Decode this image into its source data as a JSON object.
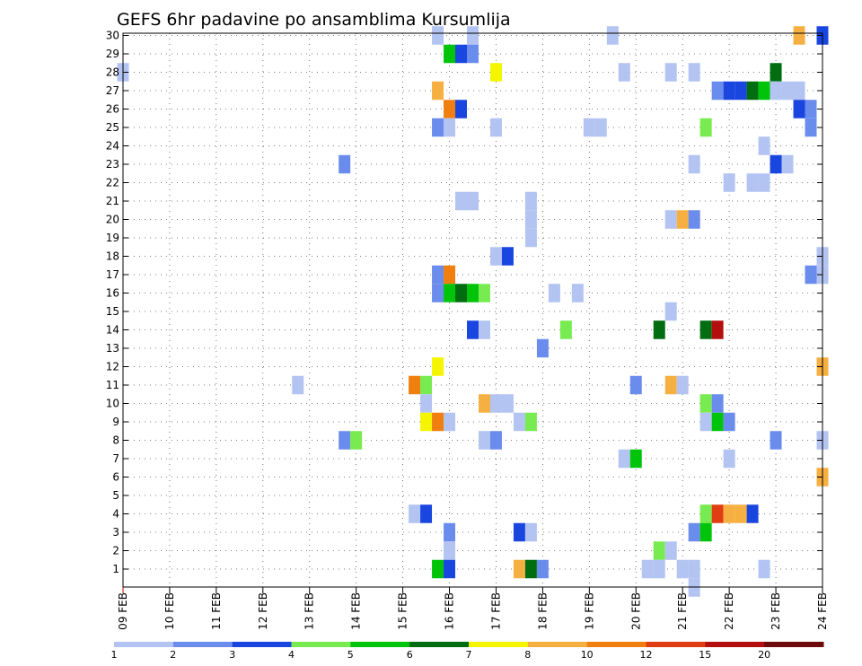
{
  "chart_data": {
    "type": "heatmap",
    "title": "GEFS 6hr padavine po ansamblima Kursumlija",
    "x_ticks": [
      "09 FEB",
      "10 FEB",
      "11 FEB",
      "12 FEB",
      "13 FEB",
      "14 FEB",
      "15 FEB",
      "16 FEB",
      "17 FEB",
      "18 FEB",
      "19 FEB",
      "20 FEB",
      "21 FEB",
      "22 FEB",
      "23 FEB",
      "24 FEB"
    ],
    "y_ticks": [
      "1",
      "2",
      "3",
      "4",
      "5",
      "6",
      "7",
      "8",
      "9",
      "10",
      "11",
      "12",
      "13",
      "14",
      "15",
      "16",
      "17",
      "18",
      "19",
      "20",
      "21",
      "22",
      "23",
      "24",
      "25",
      "26",
      "27",
      "28",
      "29",
      "30"
    ],
    "colorbar": {
      "labels": [
        "1",
        "2",
        "3",
        "4",
        "5",
        "6",
        "7",
        "8",
        "10",
        "12",
        "15",
        "20"
      ],
      "colors": [
        "#b3c4f2",
        "#6a8cec",
        "#1a46e0",
        "#78eb51",
        "#00c40a",
        "#006d10",
        "#f5f500",
        "#f5b041",
        "#f07f10",
        "#e03d12",
        "#b40f0f",
        "#6e0a0a"
      ]
    },
    "cells": [
      {
        "m": 30,
        "t": "15 FEB 18Z",
        "c": 1
      },
      {
        "m": 30,
        "t": "16 FEB 12Z",
        "c": 1
      },
      {
        "m": 30,
        "t": "19 FEB 12Z",
        "c": 1
      },
      {
        "m": 30,
        "t": "23 FEB 12Z",
        "c": 8
      },
      {
        "m": 30,
        "t": "24 FEB 00Z",
        "c": 3
      },
      {
        "m": 29,
        "t": "16 FEB 00Z",
        "c": 5
      },
      {
        "m": 29,
        "t": "16 FEB 06Z",
        "c": 3
      },
      {
        "m": 29,
        "t": "16 FEB 12Z",
        "c": 2
      },
      {
        "m": 28,
        "t": "09 FEB 00Z",
        "c": 1
      },
      {
        "m": 28,
        "t": "17 FEB 00Z",
        "c": 7
      },
      {
        "m": 28,
        "t": "19 FEB 18Z",
        "c": 1
      },
      {
        "m": 28,
        "t": "20 FEB 18Z",
        "c": 1
      },
      {
        "m": 28,
        "t": "21 FEB 06Z",
        "c": 1
      },
      {
        "m": 28,
        "t": "23 FEB 00Z",
        "c": 6
      },
      {
        "m": 27,
        "t": "15 FEB 18Z",
        "c": 8
      },
      {
        "m": 27,
        "t": "21 FEB 18Z",
        "c": 2
      },
      {
        "m": 27,
        "t": "22 FEB 00Z",
        "c": 3
      },
      {
        "m": 27,
        "t": "22 FEB 06Z",
        "c": 3
      },
      {
        "m": 27,
        "t": "22 FEB 12Z",
        "c": 6
      },
      {
        "m": 27,
        "t": "22 FEB 18Z",
        "c": 5
      },
      {
        "m": 27,
        "t": "23 FEB 00Z",
        "c": 1
      },
      {
        "m": 27,
        "t": "23 FEB 06Z",
        "c": 1
      },
      {
        "m": 27,
        "t": "23 FEB 12Z",
        "c": 1
      },
      {
        "m": 26,
        "t": "16 FEB 00Z",
        "c": 9
      },
      {
        "m": 26,
        "t": "16 FEB 06Z",
        "c": 3
      },
      {
        "m": 26,
        "t": "23 FEB 12Z",
        "c": 3
      },
      {
        "m": 26,
        "t": "23 FEB 18Z",
        "c": 2
      },
      {
        "m": 25,
        "t": "15 FEB 18Z",
        "c": 2
      },
      {
        "m": 25,
        "t": "16 FEB 00Z",
        "c": 1
      },
      {
        "m": 25,
        "t": "17 FEB 00Z",
        "c": 1
      },
      {
        "m": 25,
        "t": "19 FEB 00Z",
        "c": 1
      },
      {
        "m": 25,
        "t": "19 FEB 06Z",
        "c": 1
      },
      {
        "m": 25,
        "t": "21 FEB 12Z",
        "c": 4
      },
      {
        "m": 25,
        "t": "23 FEB 18Z",
        "c": 2
      },
      {
        "m": 24,
        "t": "22 FEB 18Z",
        "c": 1
      },
      {
        "m": 23,
        "t": "13 FEB 18Z",
        "c": 2
      },
      {
        "m": 23,
        "t": "21 FEB 06Z",
        "c": 1
      },
      {
        "m": 23,
        "t": "23 FEB 00Z",
        "c": 3
      },
      {
        "m": 23,
        "t": "23 FEB 06Z",
        "c": 1
      },
      {
        "m": 22,
        "t": "22 FEB 00Z",
        "c": 1
      },
      {
        "m": 22,
        "t": "22 FEB 12Z",
        "c": 1
      },
      {
        "m": 22,
        "t": "22 FEB 18Z",
        "c": 1
      },
      {
        "m": 21,
        "t": "16 FEB 06Z",
        "c": 1
      },
      {
        "m": 21,
        "t": "16 FEB 12Z",
        "c": 1
      },
      {
        "m": 21,
        "t": "17 FEB 18Z",
        "c": 1
      },
      {
        "m": 20,
        "t": "17 FEB 18Z",
        "c": 1
      },
      {
        "m": 20,
        "t": "20 FEB 18Z",
        "c": 1
      },
      {
        "m": 20,
        "t": "21 FEB 00Z",
        "c": 8
      },
      {
        "m": 20,
        "t": "21 FEB 06Z",
        "c": 2
      },
      {
        "m": 19,
        "t": "17 FEB 18Z",
        "c": 1
      },
      {
        "m": 18,
        "t": "17 FEB 00Z",
        "c": 1
      },
      {
        "m": 18,
        "t": "17 FEB 06Z",
        "c": 3
      },
      {
        "m": 18,
        "t": "24 FEB 00Z",
        "c": 1
      },
      {
        "m": 17,
        "t": "15 FEB 18Z",
        "c": 2
      },
      {
        "m": 17,
        "t": "16 FEB 00Z",
        "c": 9
      },
      {
        "m": 17,
        "t": "23 FEB 18Z",
        "c": 2
      },
      {
        "m": 17,
        "t": "24 FEB 00Z",
        "c": 1
      },
      {
        "m": 16,
        "t": "15 FEB 18Z",
        "c": 2
      },
      {
        "m": 16,
        "t": "16 FEB 00Z",
        "c": 5
      },
      {
        "m": 16,
        "t": "16 FEB 06Z",
        "c": 6
      },
      {
        "m": 16,
        "t": "16 FEB 12Z",
        "c": 5
      },
      {
        "m": 16,
        "t": "16 FEB 18Z",
        "c": 4
      },
      {
        "m": 16,
        "t": "18 FEB 06Z",
        "c": 1
      },
      {
        "m": 16,
        "t": "18 FEB 18Z",
        "c": 1
      },
      {
        "m": 15,
        "t": "20 FEB 18Z",
        "c": 1
      },
      {
        "m": 14,
        "t": "16 FEB 12Z",
        "c": 3
      },
      {
        "m": 14,
        "t": "16 FEB 18Z",
        "c": 1
      },
      {
        "m": 14,
        "t": "18 FEB 12Z",
        "c": 4
      },
      {
        "m": 14,
        "t": "20 FEB 12Z",
        "c": 6
      },
      {
        "m": 14,
        "t": "21 FEB 12Z",
        "c": 6
      },
      {
        "m": 14,
        "t": "21 FEB 18Z",
        "c": 11
      },
      {
        "m": 13,
        "t": "18 FEB 00Z",
        "c": 2
      },
      {
        "m": 12,
        "t": "15 FEB 18Z",
        "c": 7
      },
      {
        "m": 12,
        "t": "24 FEB 00Z",
        "c": 8
      },
      {
        "m": 11,
        "t": "12 FEB 18Z",
        "c": 1
      },
      {
        "m": 11,
        "t": "15 FEB 06Z",
        "c": 9
      },
      {
        "m": 11,
        "t": "15 FEB 12Z",
        "c": 4
      },
      {
        "m": 11,
        "t": "20 FEB 00Z",
        "c": 2
      },
      {
        "m": 11,
        "t": "20 FEB 18Z",
        "c": 8
      },
      {
        "m": 11,
        "t": "21 FEB 00Z",
        "c": 1
      },
      {
        "m": 10,
        "t": "15 FEB 12Z",
        "c": 1
      },
      {
        "m": 10,
        "t": "16 FEB 18Z",
        "c": 8
      },
      {
        "m": 10,
        "t": "17 FEB 00Z",
        "c": 1
      },
      {
        "m": 10,
        "t": "17 FEB 06Z",
        "c": 1
      },
      {
        "m": 10,
        "t": "21 FEB 12Z",
        "c": 4
      },
      {
        "m": 10,
        "t": "21 FEB 18Z",
        "c": 2
      },
      {
        "m": 9,
        "t": "15 FEB 12Z",
        "c": 7
      },
      {
        "m": 9,
        "t": "15 FEB 18Z",
        "c": 9
      },
      {
        "m": 9,
        "t": "16 FEB 00Z",
        "c": 1
      },
      {
        "m": 9,
        "t": "17 FEB 12Z",
        "c": 1
      },
      {
        "m": 9,
        "t": "17 FEB 18Z",
        "c": 4
      },
      {
        "m": 9,
        "t": "21 FEB 12Z",
        "c": 1
      },
      {
        "m": 9,
        "t": "21 FEB 18Z",
        "c": 5
      },
      {
        "m": 9,
        "t": "22 FEB 00Z",
        "c": 2
      },
      {
        "m": 8,
        "t": "13 FEB 18Z",
        "c": 2
      },
      {
        "m": 8,
        "t": "14 FEB 00Z",
        "c": 4
      },
      {
        "m": 8,
        "t": "16 FEB 18Z",
        "c": 1
      },
      {
        "m": 8,
        "t": "17 FEB 00Z",
        "c": 2
      },
      {
        "m": 8,
        "t": "23 FEB 00Z",
        "c": 2
      },
      {
        "m": 8,
        "t": "24 FEB 00Z",
        "c": 1
      },
      {
        "m": 7,
        "t": "19 FEB 18Z",
        "c": 1
      },
      {
        "m": 7,
        "t": "20 FEB 00Z",
        "c": 5
      },
      {
        "m": 7,
        "t": "22 FEB 00Z",
        "c": 1
      },
      {
        "m": 6,
        "t": "24 FEB 00Z",
        "c": 8
      },
      {
        "m": 4,
        "t": "15 FEB 06Z",
        "c": 1
      },
      {
        "m": 4,
        "t": "15 FEB 12Z",
        "c": 3
      },
      {
        "m": 4,
        "t": "21 FEB 12Z",
        "c": 4
      },
      {
        "m": 4,
        "t": "21 FEB 18Z",
        "c": 10
      },
      {
        "m": 4,
        "t": "22 FEB 00Z",
        "c": 8
      },
      {
        "m": 4,
        "t": "22 FEB 06Z",
        "c": 8
      },
      {
        "m": 4,
        "t": "22 FEB 12Z",
        "c": 3
      },
      {
        "m": 3,
        "t": "16 FEB 00Z",
        "c": 2
      },
      {
        "m": 3,
        "t": "17 FEB 12Z",
        "c": 3
      },
      {
        "m": 3,
        "t": "17 FEB 18Z",
        "c": 1
      },
      {
        "m": 3,
        "t": "21 FEB 06Z",
        "c": 2
      },
      {
        "m": 3,
        "t": "21 FEB 12Z",
        "c": 5
      },
      {
        "m": 2,
        "t": "16 FEB 00Z",
        "c": 1
      },
      {
        "m": 2,
        "t": "20 FEB 12Z",
        "c": 4
      },
      {
        "m": 2,
        "t": "20 FEB 18Z",
        "c": 1
      },
      {
        "m": 1,
        "t": "15 FEB 18Z",
        "c": 5
      },
      {
        "m": 1,
        "t": "16 FEB 00Z",
        "c": 3
      },
      {
        "m": 1,
        "t": "17 FEB 12Z",
        "c": 8
      },
      {
        "m": 1,
        "t": "17 FEB 18Z",
        "c": 6
      },
      {
        "m": 1,
        "t": "18 FEB 00Z",
        "c": 2
      },
      {
        "m": 1,
        "t": "20 FEB 06Z",
        "c": 1
      },
      {
        "m": 1,
        "t": "20 FEB 12Z",
        "c": 1
      },
      {
        "m": 1,
        "t": "21 FEB 00Z",
        "c": 1
      },
      {
        "m": 1,
        "t": "21 FEB 06Z",
        "c": 1
      },
      {
        "m": 1,
        "t": "22 FEB 18Z",
        "c": 1
      },
      {
        "m": 0,
        "t": "21 FEB 06Z",
        "c": 1
      }
    ]
  }
}
